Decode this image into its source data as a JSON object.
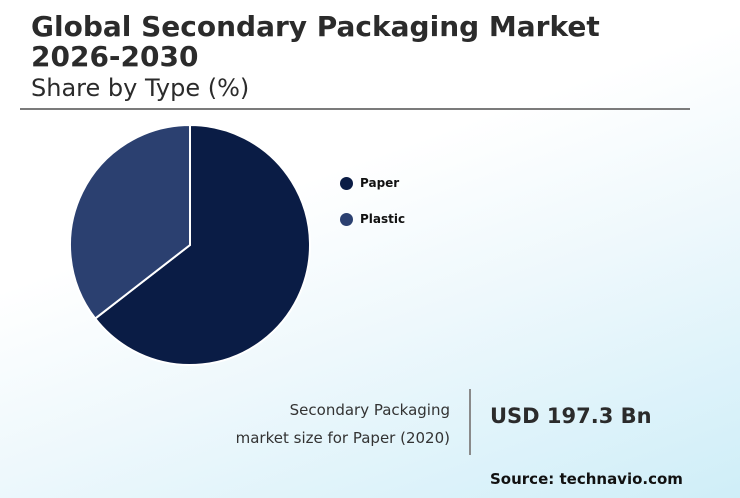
{
  "title": "Global Secondary Packaging Market 2026-2030",
  "subtitle": "Share by Type (%)",
  "colors": {
    "paper": "#0a1c45",
    "plastic": "#2b4070",
    "text": "#2b2b2b"
  },
  "chart_data": {
    "type": "pie",
    "title": "Global Secondary Packaging Market 2026-2030",
    "subtitle": "Share by Type (%)",
    "categories": [
      "Paper",
      "Plastic"
    ],
    "values": [
      64.5,
      35.5
    ],
    "colors": [
      "#0a1c45",
      "#2b4070"
    ],
    "legend": "right"
  },
  "legend": [
    {
      "label": "Paper",
      "color": "#0a1c45"
    },
    {
      "label": "Plastic",
      "color": "#2b4070"
    }
  ],
  "kpi": {
    "caption_line1": "Secondary Packaging",
    "caption_line2": "market size for Paper (2020)",
    "value": "USD 197.3 Bn"
  },
  "source": "Source: technavio.com"
}
